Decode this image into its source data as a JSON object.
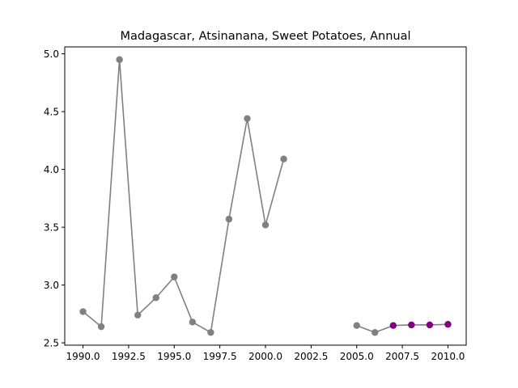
{
  "chart_data": {
    "type": "line",
    "title": "Madagascar, Atsinanana, Sweet Potatoes, Annual",
    "xlabel": "",
    "ylabel": "",
    "xlim": [
      1989.0,
      2011.0
    ],
    "ylim": [
      2.48,
      5.06
    ],
    "x_ticks": [
      1990.0,
      1992.5,
      1995.0,
      1997.5,
      2000.0,
      2002.5,
      2005.0,
      2007.5,
      2010.0
    ],
    "x_tick_labels": [
      "1990.0",
      "1992.5",
      "1995.0",
      "1997.5",
      "2000.0",
      "2002.5",
      "2005.0",
      "2007.5",
      "2010.0"
    ],
    "y_ticks": [
      2.5,
      3.0,
      3.5,
      4.0,
      4.5,
      5.0
    ],
    "y_tick_labels": [
      "2.5",
      "3.0",
      "3.5",
      "4.0",
      "4.5",
      "5.0"
    ],
    "grid": false,
    "line_color": "#808080",
    "segments": [
      {
        "color": "#808080",
        "points": [
          [
            1990,
            2.77
          ],
          [
            1991,
            2.64
          ],
          [
            1992,
            4.95
          ],
          [
            1993,
            2.74
          ],
          [
            1994,
            2.89
          ],
          [
            1995,
            3.07
          ],
          [
            1996,
            2.68
          ],
          [
            1997,
            2.59
          ],
          [
            1998,
            3.57
          ],
          [
            1999,
            4.44
          ],
          [
            2000,
            3.52
          ],
          [
            2001,
            4.09
          ]
        ]
      },
      {
        "color": "#808080",
        "points": [
          [
            2005,
            2.65
          ],
          [
            2006,
            2.59
          ],
          [
            2007,
            2.65
          ],
          [
            2008,
            2.655
          ],
          [
            2009,
            2.655
          ],
          [
            2010,
            2.66
          ]
        ]
      }
    ],
    "marker_colors": {
      "default": "#808080",
      "highlight": "#800080"
    },
    "highlighted_x": [
      2007,
      2008,
      2009,
      2010
    ]
  }
}
